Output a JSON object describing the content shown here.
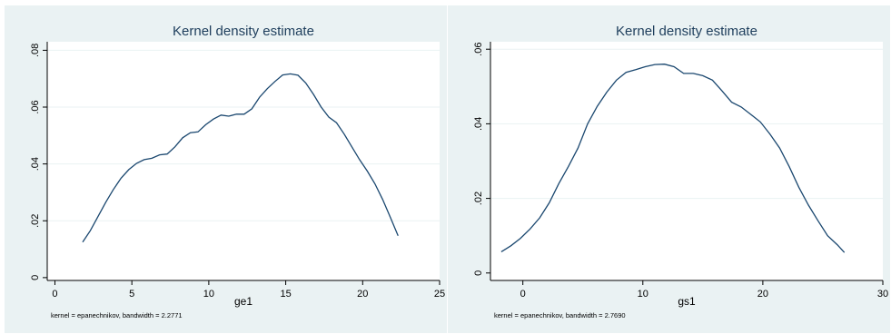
{
  "colors": {
    "panel_background": "#eaf2f3",
    "plot_background": "#ffffff",
    "line": "#1a476f",
    "title_text": "#1e3e5c"
  },
  "chart_data": [
    {
      "type": "line",
      "title": "Kernel density estimate",
      "xlabel": "ge1",
      "ylabel": "",
      "note": "kernel = epanechnikov, bandwidth = 2.2771",
      "xlim": [
        -0.5,
        25
      ],
      "ylim": [
        -0.001,
        0.083
      ],
      "xticks": [
        0,
        5,
        10,
        15,
        20,
        25
      ],
      "yticks": [
        0,
        0.02,
        0.04,
        0.06,
        0.08
      ],
      "ytick_labels": [
        "0",
        ".02",
        ".04",
        ".06",
        ".08"
      ],
      "grid": true,
      "series": [
        {
          "x": [
            1.8,
            2.3,
            2.8,
            3.3,
            3.8,
            4.3,
            4.8,
            5.3,
            5.8,
            6.3,
            6.8,
            7.3,
            7.8,
            8.3,
            8.8,
            9.3,
            9.8,
            10.3,
            10.8,
            11.3,
            11.8,
            12.3,
            12.8,
            13.3,
            13.8,
            14.3,
            14.8,
            15.3,
            15.8,
            16.3,
            16.8,
            17.3,
            17.8,
            18.3,
            18.8,
            19.3,
            19.8,
            20.3,
            20.8,
            21.3,
            21.8,
            22.3
          ],
          "y": [
            0.0125,
            0.0165,
            0.0215,
            0.0265,
            0.031,
            0.035,
            0.038,
            0.0402,
            0.0415,
            0.042,
            0.0432,
            0.0435,
            0.046,
            0.0492,
            0.051,
            0.0513,
            0.0538,
            0.0558,
            0.0572,
            0.0568,
            0.0575,
            0.0575,
            0.0594,
            0.0635,
            0.0665,
            0.069,
            0.0713,
            0.0717,
            0.0712,
            0.0685,
            0.0645,
            0.06,
            0.0565,
            0.0545,
            0.0505,
            0.046,
            0.0415,
            0.0375,
            0.033,
            0.0275,
            0.0212,
            0.0147
          ]
        }
      ]
    },
    {
      "type": "line",
      "title": "Kernel density estimate",
      "xlabel": "gs1",
      "ylabel": "",
      "note": "kernel = epanechnikov, bandwidth = 2.7690",
      "xlim": [
        -2.7,
        30
      ],
      "ylim": [
        -0.002,
        0.062
      ],
      "xticks": [
        0,
        10,
        20,
        30
      ],
      "yticks": [
        0,
        0.02,
        0.04,
        0.06
      ],
      "ytick_labels": [
        "0",
        ".02",
        ".04",
        ".06"
      ],
      "grid": true,
      "series": [
        {
          "x": [
            -1.8,
            -1.0,
            -0.2,
            0.6,
            1.4,
            2.2,
            3.0,
            3.8,
            4.6,
            5.4,
            6.2,
            7.0,
            7.8,
            8.6,
            9.4,
            10.2,
            11.0,
            11.8,
            12.6,
            13.4,
            14.2,
            15.0,
            15.8,
            16.6,
            17.4,
            18.2,
            19.0,
            19.8,
            20.6,
            21.4,
            22.2,
            23.0,
            23.8,
            24.6,
            25.4,
            26.2,
            26.8
          ],
          "y": [
            0.0057,
            0.0073,
            0.0093,
            0.0118,
            0.0148,
            0.0188,
            0.024,
            0.0286,
            0.0335,
            0.04,
            0.0447,
            0.0485,
            0.0517,
            0.0538,
            0.0545,
            0.0553,
            0.0559,
            0.056,
            0.0553,
            0.0535,
            0.0535,
            0.0529,
            0.0517,
            0.0488,
            0.0458,
            0.0445,
            0.0425,
            0.0405,
            0.0372,
            0.0335,
            0.0285,
            0.023,
            0.0182,
            0.014,
            0.01,
            0.0076,
            0.0055
          ]
        }
      ]
    }
  ]
}
